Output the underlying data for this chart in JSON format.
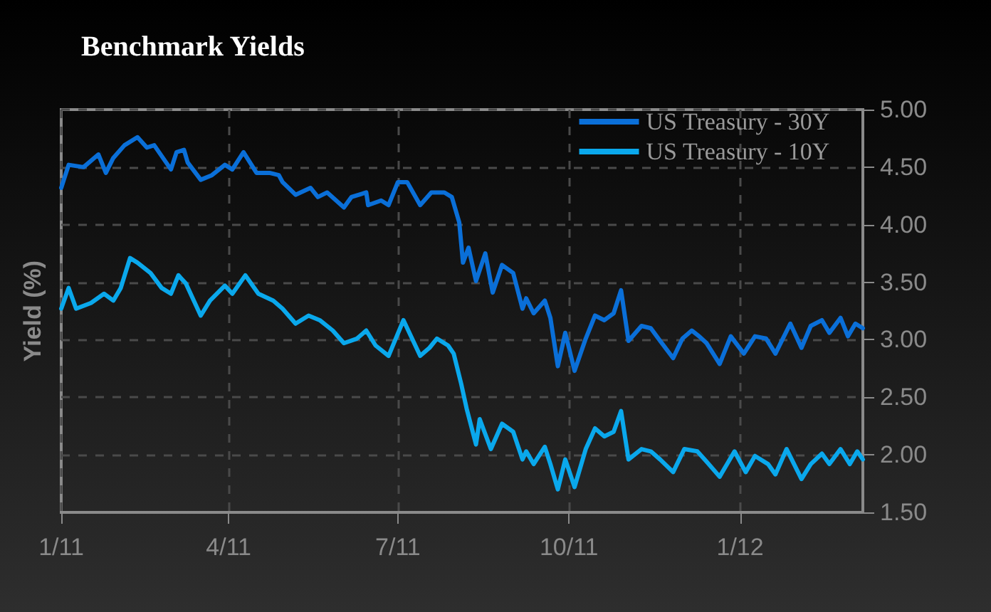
{
  "chart_data": {
    "type": "line",
    "title": "Benchmark Yields",
    "ylabel": "Yield (%)",
    "xlim": [
      "2011-01-01",
      "2012-03-07"
    ],
    "xticks": [
      {
        "value": "2011-01-01",
        "label": "1/11"
      },
      {
        "value": "2011-04-01",
        "label": "4/11"
      },
      {
        "value": "2011-07-01",
        "label": "7/11"
      },
      {
        "value": "2011-10-01",
        "label": "10/11"
      },
      {
        "value": "2012-01-01",
        "label": "1/12"
      }
    ],
    "ylim": [
      1.5,
      5
    ],
    "yticks": [
      {
        "value": 1.5,
        "label": "1.50"
      },
      {
        "value": 2,
        "label": "2.00"
      },
      {
        "value": 2.5,
        "label": "2.50"
      },
      {
        "value": 3,
        "label": "3.00"
      },
      {
        "value": 3.5,
        "label": "3.50"
      },
      {
        "value": 4,
        "label": "4.00"
      },
      {
        "value": 4.5,
        "label": "4.50"
      },
      {
        "value": 5,
        "label": "5.00"
      }
    ],
    "grid": true,
    "legend": "top right",
    "marker": "none",
    "line_style": "solid",
    "series": [
      {
        "name": "US Treasury - 30Y",
        "color": "#0a6fd8",
        "x": [
          "2011-01-01",
          "2011-01-05",
          "2011-01-13",
          "2011-01-21",
          "2011-01-25",
          "2011-01-29",
          "2011-02-04",
          "2011-02-11",
          "2011-02-16",
          "2011-02-20",
          "2011-03-01",
          "2011-03-04",
          "2011-03-08",
          "2011-03-10",
          "2011-03-17",
          "2011-03-23",
          "2011-03-30",
          "2011-04-03",
          "2011-04-09",
          "2011-04-16",
          "2011-04-23",
          "2011-04-28",
          "2011-04-30",
          "2011-05-07",
          "2011-05-15",
          "2011-05-19",
          "2011-05-24",
          "2011-06-02",
          "2011-06-06",
          "2011-06-14",
          "2011-06-15",
          "2011-06-22",
          "2011-06-26",
          "2011-07-01",
          "2011-07-06",
          "2011-07-13",
          "2011-07-19",
          "2011-07-26",
          "2011-07-30",
          "2011-08-03",
          "2011-08-05",
          "2011-08-08",
          "2011-08-12",
          "2011-08-17",
          "2011-08-21",
          "2011-08-26",
          "2011-09-01",
          "2011-09-06",
          "2011-09-08",
          "2011-09-12",
          "2011-09-18",
          "2011-09-21",
          "2011-09-25",
          "2011-09-29",
          "2011-10-04",
          "2011-10-10",
          "2011-10-15",
          "2011-10-20",
          "2011-10-25",
          "2011-10-29",
          "2011-11-02",
          "2011-11-09",
          "2011-11-14",
          "2011-11-19",
          "2011-11-26",
          "2011-12-01",
          "2011-12-06",
          "2011-12-10",
          "2011-12-14",
          "2011-12-21",
          "2011-12-27",
          "2012-01-03",
          "2012-01-09",
          "2012-01-15",
          "2012-01-20",
          "2012-01-28",
          "2012-02-03",
          "2012-02-08",
          "2012-02-14",
          "2012-02-18",
          "2012-02-24",
          "2012-02-28",
          "2012-03-03",
          "2012-03-07"
        ],
        "values": [
          4.32,
          4.52,
          4.5,
          4.61,
          4.45,
          4.58,
          4.69,
          4.76,
          4.67,
          4.69,
          4.48,
          4.63,
          4.65,
          4.54,
          4.39,
          4.43,
          4.52,
          4.48,
          4.63,
          4.45,
          4.45,
          4.43,
          4.37,
          4.26,
          4.32,
          4.24,
          4.28,
          4.15,
          4.24,
          4.28,
          4.17,
          4.21,
          4.17,
          4.37,
          4.37,
          4.17,
          4.28,
          4.28,
          4.24,
          4.02,
          3.67,
          3.8,
          3.51,
          3.75,
          3.41,
          3.65,
          3.58,
          3.27,
          3.36,
          3.23,
          3.34,
          3.19,
          2.77,
          3.06,
          2.73,
          3.01,
          3.21,
          3.17,
          3.23,
          3.43,
          2.99,
          3.12,
          3.1,
          2.99,
          2.84,
          3.01,
          3.08,
          3.03,
          2.97,
          2.79,
          3.03,
          2.88,
          3.03,
          3.01,
          2.88,
          3.14,
          2.93,
          3.12,
          3.17,
          3.06,
          3.19,
          3.03,
          3.14,
          3.1
        ]
      },
      {
        "name": "US Treasury - 10Y",
        "color": "#0aa8ec",
        "x": [
          "2011-01-01",
          "2011-01-05",
          "2011-01-09",
          "2011-01-17",
          "2011-01-24",
          "2011-01-29",
          "2011-02-02",
          "2011-02-07",
          "2011-02-11",
          "2011-02-18",
          "2011-02-24",
          "2011-03-01",
          "2011-03-05",
          "2011-03-09",
          "2011-03-17",
          "2011-03-22",
          "2011-03-30",
          "2011-04-03",
          "2011-04-10",
          "2011-04-17",
          "2011-04-25",
          "2011-04-30",
          "2011-05-07",
          "2011-05-14",
          "2011-05-20",
          "2011-05-27",
          "2011-06-02",
          "2011-06-09",
          "2011-06-14",
          "2011-06-19",
          "2011-06-26",
          "2011-07-04",
          "2011-07-13",
          "2011-07-18",
          "2011-07-22",
          "2011-07-28",
          "2011-07-31",
          "2011-08-04",
          "2011-08-07",
          "2011-08-12",
          "2011-08-14",
          "2011-08-20",
          "2011-08-26",
          "2011-09-01",
          "2011-09-06",
          "2011-09-08",
          "2011-09-12",
          "2011-09-18",
          "2011-09-21",
          "2011-09-25",
          "2011-09-29",
          "2011-10-04",
          "2011-10-10",
          "2011-10-15",
          "2011-10-20",
          "2011-10-25",
          "2011-10-29",
          "2011-11-02",
          "2011-11-09",
          "2011-11-14",
          "2011-11-19",
          "2011-11-26",
          "2011-12-02",
          "2011-12-09",
          "2011-12-14",
          "2011-12-21",
          "2011-12-29",
          "2012-01-04",
          "2012-01-09",
          "2012-01-16",
          "2012-01-20",
          "2012-01-26",
          "2012-02-03",
          "2012-02-08",
          "2012-02-14",
          "2012-02-18",
          "2012-02-24",
          "2012-02-29",
          "2012-03-04",
          "2012-03-07"
        ],
        "values": [
          3.27,
          3.45,
          3.27,
          3.32,
          3.4,
          3.34,
          3.45,
          3.71,
          3.67,
          3.58,
          3.45,
          3.4,
          3.56,
          3.49,
          3.21,
          3.34,
          3.47,
          3.4,
          3.56,
          3.4,
          3.34,
          3.27,
          3.14,
          3.21,
          3.17,
          3.08,
          2.97,
          3.01,
          3.08,
          2.95,
          2.86,
          3.17,
          2.86,
          2.93,
          3.01,
          2.95,
          2.88,
          2.62,
          2.4,
          2.09,
          2.31,
          2.05,
          2.27,
          2.2,
          1.96,
          2.03,
          1.92,
          2.07,
          1.92,
          1.7,
          1.96,
          1.72,
          2.05,
          2.23,
          2.16,
          2.2,
          2.38,
          1.96,
          2.05,
          2.03,
          1.96,
          1.85,
          2.05,
          2.03,
          1.94,
          1.81,
          2.03,
          1.85,
          1.99,
          1.92,
          1.83,
          2.05,
          1.79,
          1.92,
          2.01,
          1.92,
          2.05,
          1.92,
          2.03,
          1.96
        ]
      }
    ]
  }
}
